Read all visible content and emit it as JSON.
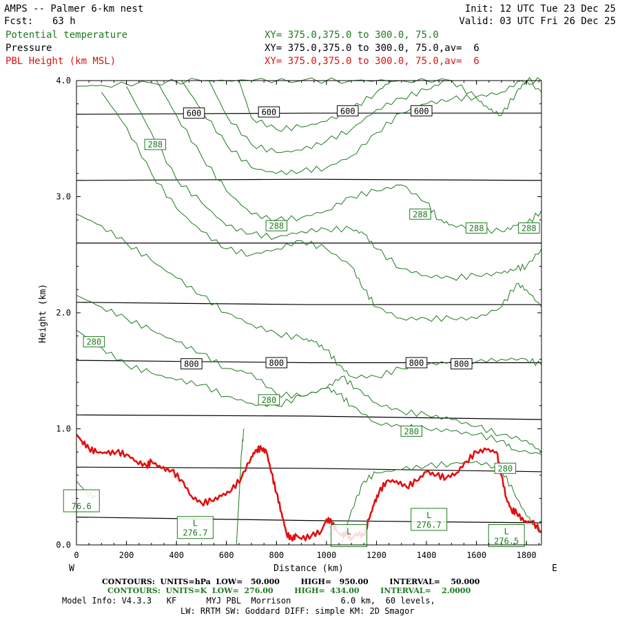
{
  "header": {
    "model": "AMPS -- Palmer 6-km nest",
    "fcst_label": "Fcst:",
    "fcst_value": "63 h",
    "init": "Init: 12 UTC Tue 23 Dec 25",
    "valid": "Valid: 03 UTC Fri 26 Dec 25"
  },
  "fields": [
    {
      "name": "Potential temperature",
      "xy": "XY= 375.0,375.0 to 300.0, 75.0",
      "color": "#1c7a1c"
    },
    {
      "name": "Pressure",
      "xy": "XY= 375.0,375.0 to 300.0, 75.0,av=  6",
      "color": "#000000"
    },
    {
      "name": "PBL Height (km MSL)",
      "xy": "XY= 375.0,375.0 to 300.0, 75.0,av=  6",
      "color": "#e01010"
    }
  ],
  "chart_data": {
    "type": "line",
    "xlabel": "Distance (km)",
    "ylabel": "Height (km)",
    "xlim": [
      0,
      1860
    ],
    "ylim": [
      0,
      4.0
    ],
    "x_ticks": [
      0,
      200,
      400,
      600,
      800,
      1000,
      1200,
      1400,
      1600,
      1800
    ],
    "y_ticks": [
      "0.0",
      "1.0",
      "2.0",
      "3.0",
      "4.0"
    ],
    "x_left_label": "W",
    "x_right_label": "E",
    "pressure_contours": [
      {
        "label": "600",
        "y": [
          3.71,
          3.72,
          3.72
        ]
      },
      {
        "label": "",
        "y": [
          3.14,
          3.15,
          3.14
        ]
      },
      {
        "label": "",
        "y": [
          2.6,
          2.6,
          2.6
        ]
      },
      {
        "label": "",
        "y": [
          2.09,
          2.07,
          2.07
        ]
      },
      {
        "label": "800",
        "y": [
          1.59,
          1.57,
          1.57
        ]
      },
      {
        "label": "",
        "y": [
          1.12,
          1.11,
          1.08
        ]
      },
      {
        "label": "",
        "y": [
          0.67,
          0.66,
          0.63
        ]
      },
      {
        "label": "",
        "y": [
          0.24,
          0.21,
          0.19
        ]
      }
    ],
    "pressure_contour_x": [
      0,
      930,
      1860
    ],
    "pressure_labels": [
      {
        "text": "600",
        "x": 470,
        "y": 3.72
      },
      {
        "text": "600",
        "x": 770,
        "y": 3.73
      },
      {
        "text": "600",
        "x": 1085,
        "y": 3.74
      },
      {
        "text": "600",
        "x": 1380,
        "y": 3.74
      },
      {
        "text": "800",
        "x": 460,
        "y": 1.56
      },
      {
        "text": "800",
        "x": 800,
        "y": 1.57
      },
      {
        "text": "800",
        "x": 1360,
        "y": 1.57
      },
      {
        "text": "800",
        "x": 1540,
        "y": 1.56
      }
    ],
    "theta_contours": [
      {
        "x": [
          0,
          100,
          200,
          300,
          400,
          500,
          600,
          700,
          800,
          900,
          1000,
          1050,
          1100,
          1200,
          1300,
          1400,
          1500,
          1600,
          1700,
          1750,
          1860
        ],
        "y": [
          1.85,
          1.7,
          1.55,
          1.48,
          1.42,
          1.38,
          1.28,
          1.22,
          1.2,
          1.28,
          1.35,
          1.3,
          1.2,
          1.05,
          1.02,
          1.0,
          0.98,
          0.95,
          0.9,
          0.82,
          0.78
        ]
      },
      {
        "x": [
          0,
          100,
          200,
          300,
          400,
          500,
          600,
          700,
          800,
          900,
          1000,
          1060,
          1120,
          1200,
          1300,
          1400,
          1500,
          1600,
          1700,
          1800,
          1860
        ],
        "y": [
          2.15,
          2.05,
          1.95,
          1.85,
          1.75,
          1.65,
          1.52,
          1.48,
          1.3,
          1.28,
          1.35,
          1.45,
          1.35,
          1.22,
          1.15,
          1.12,
          1.08,
          1.02,
          0.95,
          0.9,
          0.8
        ]
      },
      {
        "x": [
          0,
          100,
          200,
          300,
          400,
          500,
          600,
          700,
          800,
          900,
          950,
          1000,
          1050,
          1100,
          1200,
          1300,
          1400,
          1500,
          1600,
          1700,
          1800,
          1860
        ],
        "y": [
          2.85,
          2.75,
          2.6,
          2.45,
          2.3,
          2.15,
          2.0,
          1.9,
          1.82,
          1.78,
          1.75,
          1.68,
          1.55,
          1.45,
          1.45,
          1.52,
          1.55,
          1.58,
          1.58,
          1.6,
          1.6,
          1.55
        ]
      },
      {
        "x": [
          100,
          200,
          300,
          400,
          500,
          600,
          700,
          800,
          900,
          1000,
          1100,
          1150,
          1200,
          1300,
          1400,
          1500,
          1600,
          1700,
          1760,
          1800,
          1860
        ],
        "y": [
          3.9,
          3.6,
          3.2,
          2.9,
          2.7,
          2.55,
          2.5,
          2.55,
          2.62,
          2.55,
          2.4,
          2.2,
          2.05,
          1.95,
          1.95,
          1.95,
          1.95,
          2.05,
          2.25,
          2.2,
          2.05
        ]
      },
      {
        "x": [
          200,
          300,
          400,
          500,
          600,
          700,
          800,
          900,
          1000,
          1100,
          1150,
          1200,
          1300,
          1400,
          1500,
          1600,
          1700,
          1760,
          1800,
          1860
        ],
        "y": [
          3.95,
          3.55,
          3.15,
          2.95,
          2.75,
          2.68,
          2.65,
          2.7,
          2.72,
          2.72,
          2.68,
          2.55,
          2.38,
          2.32,
          2.3,
          2.32,
          2.34,
          2.38,
          2.4,
          2.55
        ]
      },
      {
        "x": [
          320,
          400,
          500,
          600,
          700,
          800,
          900,
          1000,
          1100,
          1200,
          1300,
          1400,
          1450,
          1500,
          1600,
          1700,
          1760,
          1800,
          1860
        ],
        "y": [
          4.0,
          3.7,
          3.35,
          3.05,
          2.85,
          2.8,
          2.82,
          2.88,
          3.0,
          3.05,
          3.1,
          2.95,
          2.8,
          2.76,
          2.72,
          2.7,
          2.75,
          2.76,
          2.88
        ]
      },
      {
        "x": [
          420,
          500,
          600,
          700,
          800,
          900,
          1000,
          1100,
          1200,
          1300,
          1400,
          1500,
          1600,
          1700,
          1780,
          1860
        ],
        "y": [
          4.0,
          3.75,
          3.45,
          3.25,
          3.2,
          3.22,
          3.25,
          3.35,
          3.55,
          3.72,
          3.8,
          3.84,
          3.86,
          3.9,
          4.0,
          4.0
        ]
      },
      {
        "x": [
          530,
          600,
          700,
          800,
          900,
          1000,
          1100,
          1200,
          1300,
          1400,
          1480
        ],
        "y": [
          4.0,
          3.7,
          3.45,
          3.38,
          3.4,
          3.48,
          3.58,
          3.75,
          3.85,
          3.92,
          4.0
        ]
      },
      {
        "x": [
          650,
          700,
          800,
          900,
          1000,
          1100,
          1200,
          1260
        ],
        "y": [
          4.0,
          3.68,
          3.58,
          3.6,
          3.65,
          3.75,
          3.9,
          4.0
        ]
      },
      {
        "x": [
          0,
          100,
          300,
          500,
          700,
          900,
          1100,
          1300,
          1500,
          1600,
          1650,
          1700,
          1760,
          1800,
          1860
        ],
        "y": [
          3.95,
          3.96,
          3.98,
          4.0,
          4.0,
          4.0,
          4.0,
          4.0,
          4.0,
          3.85,
          3.75,
          3.7,
          3.9,
          4.0,
          3.9
        ]
      },
      {
        "x": [
          0,
          40,
          80
        ],
        "y": [
          0.55,
          0.45,
          0.4
        ]
      },
      {
        "x": [
          640,
          650,
          660,
          670
        ],
        "y": [
          0.0,
          0.4,
          0.8,
          1.0
        ]
      },
      {
        "x": [
          1060,
          1100,
          1150,
          1200,
          1300,
          1400,
          1500,
          1600,
          1700,
          1750,
          1800,
          1860
        ],
        "y": [
          0.0,
          0.3,
          0.55,
          0.62,
          0.65,
          0.68,
          0.7,
          0.72,
          0.65,
          0.45,
          0.25,
          0.1
        ]
      }
    ],
    "theta_labels": [
      {
        "text": "288",
        "x": 315,
        "y": 3.45
      },
      {
        "text": "288",
        "x": 800,
        "y": 2.75
      },
      {
        "text": "288",
        "x": 1375,
        "y": 2.85
      },
      {
        "text": "288",
        "x": 1600,
        "y": 2.73
      },
      {
        "text": "288",
        "x": 1810,
        "y": 2.73
      },
      {
        "text": "280",
        "x": 70,
        "y": 1.75
      },
      {
        "text": "280",
        "x": 770,
        "y": 1.25
      },
      {
        "text": "280",
        "x": 1340,
        "y": 0.98
      },
      {
        "text": "280",
        "x": 1715,
        "y": 0.66
      }
    ],
    "lows": [
      {
        "text": "L",
        "value": "276.7",
        "x": 475,
        "y": 0.15
      },
      {
        "text": "L",
        "value": "276.7",
        "x": 1410,
        "y": 0.22
      },
      {
        "text": "L",
        "value": "276.5",
        "x": 1720,
        "y": 0.08
      },
      {
        "text": "L",
        "value": "",
        "x": 1090,
        "y": 0.08
      },
      {
        "text": "",
        "value": "76.6",
        "x": 20,
        "y": 0.38
      }
    ],
    "pbl_height": {
      "name": "PBL Height (km MSL)",
      "x": [
        0,
        20,
        50,
        80,
        120,
        160,
        200,
        240,
        280,
        300,
        340,
        380,
        420,
        460,
        500,
        540,
        580,
        620,
        660,
        700,
        720,
        740,
        760,
        780,
        800,
        820,
        840,
        860,
        880,
        900,
        940,
        980,
        1000,
        1020,
        1040,
        1060,
        1080,
        1100,
        1120,
        1150,
        1170,
        1190,
        1210,
        1240,
        1280,
        1320,
        1360,
        1400,
        1440,
        1480,
        1520,
        1560,
        1600,
        1640,
        1680,
        1700,
        1720,
        1740,
        1760,
        1790,
        1820,
        1860
      ],
      "y": [
        0.95,
        0.9,
        0.83,
        0.8,
        0.79,
        0.8,
        0.78,
        0.72,
        0.68,
        0.72,
        0.66,
        0.64,
        0.56,
        0.42,
        0.36,
        0.38,
        0.42,
        0.47,
        0.58,
        0.76,
        0.82,
        0.83,
        0.8,
        0.62,
        0.45,
        0.28,
        0.1,
        0.05,
        0.08,
        0.05,
        0.08,
        0.12,
        0.22,
        0.2,
        0.12,
        0.08,
        0.1,
        0.05,
        0.1,
        0.08,
        0.22,
        0.35,
        0.45,
        0.55,
        0.55,
        0.5,
        0.55,
        0.63,
        0.6,
        0.58,
        0.62,
        0.72,
        0.8,
        0.82,
        0.8,
        0.6,
        0.4,
        0.3,
        0.28,
        0.2,
        0.2,
        0.12
      ],
      "color": "#e01010"
    },
    "pressure_color": "#000000",
    "theta_color": "#1c7a1c"
  },
  "footer": {
    "contours_p": "CONTOURS:  UNITS=hPa  LOW=   50.000        HIGH=   950.00        INTERVAL=    50.000",
    "contours_t": "CONTOURS:  UNITS=K  LOW=  276.00        HIGH=  434.00        INTERVAL=    2.0000",
    "model_info": "Model Info: V4.3.3   KF      MYJ PBL  Morrison          6.0 km,  60 levels,",
    "physics": "LW: RRTM SW: Goddard DIFF: simple KM: 2D Smagor"
  }
}
